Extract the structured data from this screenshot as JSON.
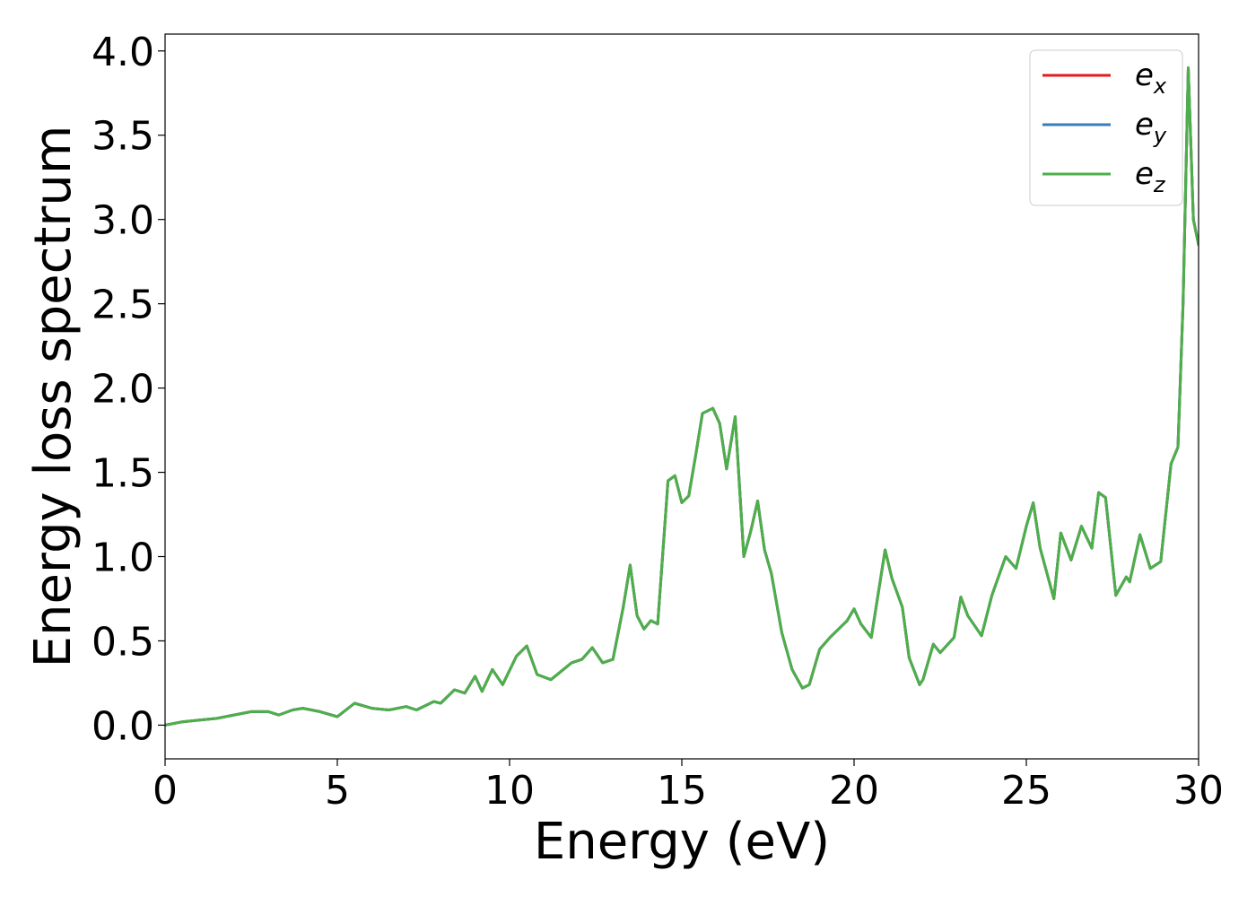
{
  "chart_data": {
    "type": "line",
    "title": "",
    "xlabel": "Energy (eV)",
    "ylabel": "Energy loss spectrum",
    "xlim": [
      0,
      30
    ],
    "ylim": [
      -0.2,
      4.1
    ],
    "xticks": [
      0,
      5,
      10,
      15,
      20,
      25,
      30
    ],
    "xtick_labels": [
      "0",
      "5",
      "10",
      "15",
      "20",
      "25",
      "30"
    ],
    "yticks": [
      0.0,
      0.5,
      1.0,
      1.5,
      2.0,
      2.5,
      3.0,
      3.5,
      4.0
    ],
    "ytick_labels": [
      "0.0",
      "0.5",
      "1.0",
      "1.5",
      "2.0",
      "2.5",
      "3.0",
      "3.5",
      "4.0"
    ],
    "grid": false,
    "legend_position": "top-right",
    "series": [
      {
        "name": "e_x",
        "legend_base": "e",
        "legend_sub": "x",
        "color": "#e41a1c",
        "x": [
          0,
          0.5,
          1.0,
          1.5,
          2.0,
          2.5,
          3.0,
          3.3,
          3.7,
          4.0,
          4.5,
          5.0,
          5.5,
          6.0,
          6.5,
          7.0,
          7.3,
          7.8,
          8.0,
          8.4,
          8.7,
          9.0,
          9.2,
          9.5,
          9.8,
          10.2,
          10.5,
          10.8,
          11.2,
          11.5,
          11.8,
          12.1,
          12.4,
          12.7,
          13.0,
          13.3,
          13.5,
          13.7,
          13.9,
          14.1,
          14.3,
          14.6,
          14.8,
          15.0,
          15.2,
          15.4,
          15.6,
          15.9,
          16.1,
          16.3,
          16.55,
          16.8,
          17.0,
          17.2,
          17.4,
          17.6,
          17.9,
          18.2,
          18.5,
          18.7,
          19.0,
          19.3,
          19.5,
          19.8,
          20.0,
          20.2,
          20.5,
          20.9,
          21.1,
          21.4,
          21.6,
          21.9,
          22.0,
          22.3,
          22.5,
          22.9,
          23.1,
          23.3,
          23.7,
          24.0,
          24.4,
          24.7,
          25.0,
          25.2,
          25.4,
          25.8,
          26.0,
          26.3,
          26.6,
          26.9,
          27.1,
          27.3,
          27.6,
          27.9,
          28.0,
          28.3,
          28.6,
          28.9,
          29.2,
          29.4,
          29.55,
          29.7,
          29.85,
          30.0
        ],
        "y": [
          0.0,
          0.02,
          0.03,
          0.04,
          0.06,
          0.08,
          0.08,
          0.06,
          0.09,
          0.1,
          0.08,
          0.05,
          0.13,
          0.1,
          0.09,
          0.11,
          0.09,
          0.14,
          0.13,
          0.21,
          0.19,
          0.29,
          0.2,
          0.33,
          0.24,
          0.41,
          0.47,
          0.3,
          0.27,
          0.32,
          0.37,
          0.39,
          0.46,
          0.37,
          0.39,
          0.7,
          0.95,
          0.65,
          0.57,
          0.62,
          0.6,
          1.45,
          1.48,
          1.32,
          1.36,
          1.6,
          1.85,
          1.88,
          1.79,
          1.52,
          1.83,
          1.0,
          1.15,
          1.33,
          1.04,
          0.9,
          0.55,
          0.33,
          0.22,
          0.24,
          0.45,
          0.52,
          0.56,
          0.62,
          0.69,
          0.6,
          0.52,
          1.04,
          0.87,
          0.7,
          0.4,
          0.24,
          0.27,
          0.48,
          0.43,
          0.52,
          0.76,
          0.65,
          0.53,
          0.77,
          1.0,
          0.93,
          1.18,
          1.32,
          1.05,
          0.75,
          1.14,
          0.98,
          1.18,
          1.05,
          1.38,
          1.35,
          0.77,
          0.88,
          0.85,
          1.13,
          0.93,
          0.97,
          1.55,
          1.65,
          2.5,
          3.9,
          3.0,
          2.85
        ]
      },
      {
        "name": "e_y",
        "legend_base": "e",
        "legend_sub": "y",
        "color": "#377eb8",
        "x": [
          0,
          0.5,
          1.0,
          1.5,
          2.0,
          2.5,
          3.0,
          3.3,
          3.7,
          4.0,
          4.5,
          5.0,
          5.5,
          6.0,
          6.5,
          7.0,
          7.3,
          7.8,
          8.0,
          8.4,
          8.7,
          9.0,
          9.2,
          9.5,
          9.8,
          10.2,
          10.5,
          10.8,
          11.2,
          11.5,
          11.8,
          12.1,
          12.4,
          12.7,
          13.0,
          13.3,
          13.5,
          13.7,
          13.9,
          14.1,
          14.3,
          14.6,
          14.8,
          15.0,
          15.2,
          15.4,
          15.6,
          15.9,
          16.1,
          16.3,
          16.55,
          16.8,
          17.0,
          17.2,
          17.4,
          17.6,
          17.9,
          18.2,
          18.5,
          18.7,
          19.0,
          19.3,
          19.5,
          19.8,
          20.0,
          20.2,
          20.5,
          20.9,
          21.1,
          21.4,
          21.6,
          21.9,
          22.0,
          22.3,
          22.5,
          22.9,
          23.1,
          23.3,
          23.7,
          24.0,
          24.4,
          24.7,
          25.0,
          25.2,
          25.4,
          25.8,
          26.0,
          26.3,
          26.6,
          26.9,
          27.1,
          27.3,
          27.6,
          27.9,
          28.0,
          28.3,
          28.6,
          28.9,
          29.2,
          29.4,
          29.55,
          29.7,
          29.85,
          30.0
        ],
        "y": [
          0.0,
          0.02,
          0.03,
          0.04,
          0.06,
          0.08,
          0.08,
          0.06,
          0.09,
          0.1,
          0.08,
          0.05,
          0.13,
          0.1,
          0.09,
          0.11,
          0.09,
          0.14,
          0.13,
          0.21,
          0.19,
          0.29,
          0.2,
          0.33,
          0.24,
          0.41,
          0.47,
          0.3,
          0.27,
          0.32,
          0.37,
          0.39,
          0.46,
          0.37,
          0.39,
          0.7,
          0.95,
          0.65,
          0.57,
          0.62,
          0.6,
          1.45,
          1.48,
          1.32,
          1.36,
          1.6,
          1.85,
          1.88,
          1.79,
          1.52,
          1.83,
          1.0,
          1.15,
          1.33,
          1.04,
          0.9,
          0.55,
          0.33,
          0.22,
          0.24,
          0.45,
          0.52,
          0.56,
          0.62,
          0.69,
          0.6,
          0.52,
          1.04,
          0.87,
          0.7,
          0.4,
          0.24,
          0.27,
          0.48,
          0.43,
          0.52,
          0.76,
          0.65,
          0.53,
          0.77,
          1.0,
          0.93,
          1.18,
          1.32,
          1.05,
          0.75,
          1.14,
          0.98,
          1.18,
          1.05,
          1.38,
          1.35,
          0.77,
          0.88,
          0.85,
          1.13,
          0.93,
          0.97,
          1.55,
          1.65,
          2.5,
          3.9,
          3.0,
          2.85
        ]
      },
      {
        "name": "e_z",
        "legend_base": "e",
        "legend_sub": "z",
        "color": "#4daf4a",
        "x": [
          0,
          0.5,
          1.0,
          1.5,
          2.0,
          2.5,
          3.0,
          3.3,
          3.7,
          4.0,
          4.5,
          5.0,
          5.5,
          6.0,
          6.5,
          7.0,
          7.3,
          7.8,
          8.0,
          8.4,
          8.7,
          9.0,
          9.2,
          9.5,
          9.8,
          10.2,
          10.5,
          10.8,
          11.2,
          11.5,
          11.8,
          12.1,
          12.4,
          12.7,
          13.0,
          13.3,
          13.5,
          13.7,
          13.9,
          14.1,
          14.3,
          14.6,
          14.8,
          15.0,
          15.2,
          15.4,
          15.6,
          15.9,
          16.1,
          16.3,
          16.55,
          16.8,
          17.0,
          17.2,
          17.4,
          17.6,
          17.9,
          18.2,
          18.5,
          18.7,
          19.0,
          19.3,
          19.5,
          19.8,
          20.0,
          20.2,
          20.5,
          20.9,
          21.1,
          21.4,
          21.6,
          21.9,
          22.0,
          22.3,
          22.5,
          22.9,
          23.1,
          23.3,
          23.7,
          24.0,
          24.4,
          24.7,
          25.0,
          25.2,
          25.4,
          25.8,
          26.0,
          26.3,
          26.6,
          26.9,
          27.1,
          27.3,
          27.6,
          27.9,
          28.0,
          28.3,
          28.6,
          28.9,
          29.2,
          29.4,
          29.55,
          29.7,
          29.85,
          30.0
        ],
        "y": [
          0.0,
          0.02,
          0.03,
          0.04,
          0.06,
          0.08,
          0.08,
          0.06,
          0.09,
          0.1,
          0.08,
          0.05,
          0.13,
          0.1,
          0.09,
          0.11,
          0.09,
          0.14,
          0.13,
          0.21,
          0.19,
          0.29,
          0.2,
          0.33,
          0.24,
          0.41,
          0.47,
          0.3,
          0.27,
          0.32,
          0.37,
          0.39,
          0.46,
          0.37,
          0.39,
          0.7,
          0.95,
          0.65,
          0.57,
          0.62,
          0.6,
          1.45,
          1.48,
          1.32,
          1.36,
          1.6,
          1.85,
          1.88,
          1.79,
          1.52,
          1.83,
          1.0,
          1.15,
          1.33,
          1.04,
          0.9,
          0.55,
          0.33,
          0.22,
          0.24,
          0.45,
          0.52,
          0.56,
          0.62,
          0.69,
          0.6,
          0.52,
          1.04,
          0.87,
          0.7,
          0.4,
          0.24,
          0.27,
          0.48,
          0.43,
          0.52,
          0.76,
          0.65,
          0.53,
          0.77,
          1.0,
          0.93,
          1.18,
          1.32,
          1.05,
          0.75,
          1.14,
          0.98,
          1.18,
          1.05,
          1.38,
          1.35,
          0.77,
          0.88,
          0.85,
          1.13,
          0.93,
          0.97,
          1.55,
          1.65,
          2.5,
          3.9,
          3.0,
          2.85
        ]
      }
    ]
  }
}
